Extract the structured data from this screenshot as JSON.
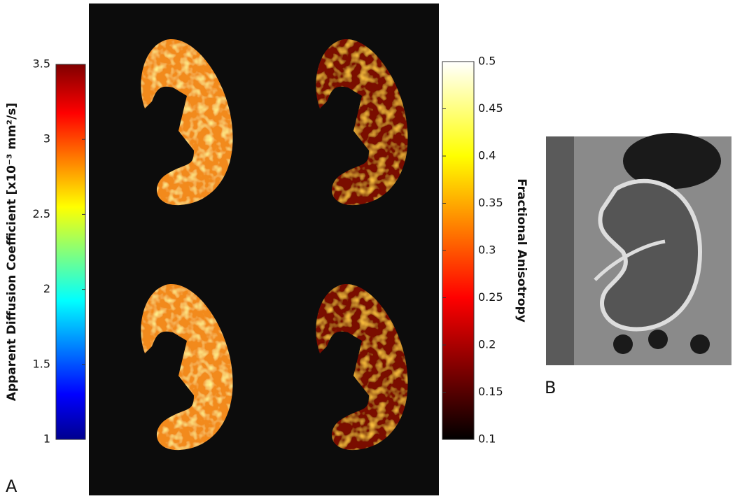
{
  "figure": {
    "panel_labels": [
      "A",
      "B"
    ],
    "colorbars": [
      {
        "label": "Apparent Diffusion Coefficient [x10⁻³ mm²/s]",
        "range": [
          1,
          3.5
        ],
        "ticks": [
          1,
          1.5,
          2,
          2.5,
          3,
          3.5
        ]
      },
      {
        "label": "Fractional Anisotropy",
        "range": [
          0.1,
          0.5
        ],
        "ticks": [
          0.1,
          0.15,
          0.2,
          0.25,
          0.3,
          0.35,
          0.4,
          0.45,
          0.5
        ]
      }
    ]
  }
}
